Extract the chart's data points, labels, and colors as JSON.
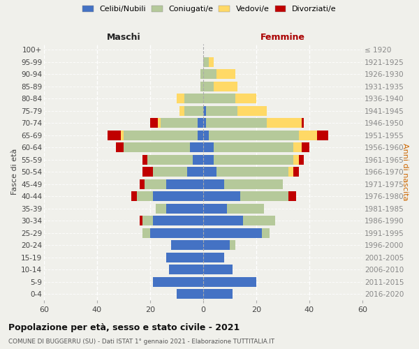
{
  "age_groups": [
    "0-4",
    "5-9",
    "10-14",
    "15-19",
    "20-24",
    "25-29",
    "30-34",
    "35-39",
    "40-44",
    "45-49",
    "50-54",
    "55-59",
    "60-64",
    "65-69",
    "70-74",
    "75-79",
    "80-84",
    "85-89",
    "90-94",
    "95-99",
    "100+"
  ],
  "birth_years": [
    "2016-2020",
    "2011-2015",
    "2006-2010",
    "2001-2005",
    "1996-2000",
    "1991-1995",
    "1986-1990",
    "1981-1985",
    "1976-1980",
    "1971-1975",
    "1966-1970",
    "1961-1965",
    "1956-1960",
    "1951-1955",
    "1946-1950",
    "1941-1945",
    "1936-1940",
    "1931-1935",
    "1926-1930",
    "1921-1925",
    "≤ 1920"
  ],
  "male": {
    "celibi": [
      10,
      19,
      13,
      14,
      12,
      20,
      19,
      14,
      19,
      14,
      6,
      4,
      5,
      2,
      2,
      0,
      0,
      0,
      0,
      0,
      0
    ],
    "coniugati": [
      0,
      0,
      0,
      0,
      0,
      3,
      4,
      4,
      6,
      8,
      13,
      17,
      25,
      28,
      14,
      7,
      7,
      1,
      1,
      0,
      0
    ],
    "vedovi": [
      0,
      0,
      0,
      0,
      0,
      0,
      0,
      0,
      0,
      0,
      0,
      0,
      0,
      1,
      1,
      2,
      3,
      0,
      0,
      0,
      0
    ],
    "divorziati": [
      0,
      0,
      0,
      0,
      0,
      0,
      1,
      0,
      2,
      2,
      4,
      2,
      3,
      5,
      3,
      0,
      0,
      0,
      0,
      0,
      0
    ]
  },
  "female": {
    "nubili": [
      11,
      20,
      11,
      8,
      10,
      22,
      15,
      9,
      14,
      8,
      5,
      4,
      4,
      2,
      1,
      1,
      0,
      0,
      0,
      0,
      0
    ],
    "coniugate": [
      0,
      0,
      0,
      0,
      2,
      3,
      12,
      14,
      18,
      22,
      27,
      30,
      30,
      34,
      23,
      12,
      12,
      4,
      5,
      2,
      0
    ],
    "vedove": [
      0,
      0,
      0,
      0,
      0,
      0,
      0,
      0,
      0,
      0,
      2,
      2,
      3,
      7,
      13,
      11,
      8,
      9,
      7,
      2,
      0
    ],
    "divorziate": [
      0,
      0,
      0,
      0,
      0,
      0,
      0,
      0,
      3,
      0,
      2,
      2,
      3,
      4,
      1,
      0,
      0,
      0,
      0,
      0,
      0
    ]
  },
  "colors": {
    "celibi": "#4472c4",
    "coniugati": "#b5c99a",
    "vedovi": "#ffd966",
    "divorziati": "#c00000"
  },
  "xlim": 60,
  "title": "Popolazione per età, sesso e stato civile - 2021",
  "subtitle": "COMUNE DI BUGGERRU (SU) - Dati ISTAT 1° gennaio 2021 - Elaborazione TUTTITALIA.IT",
  "ylabel_left": "Fasce di età",
  "ylabel_right": "Anni di nascita",
  "xlabel_left": "Maschi",
  "xlabel_right": "Femmine",
  "legend_labels": [
    "Celibi/Nubili",
    "Coniugati/e",
    "Vedovi/e",
    "Divorziati/e"
  ],
  "background_color": "#f0f0eb"
}
